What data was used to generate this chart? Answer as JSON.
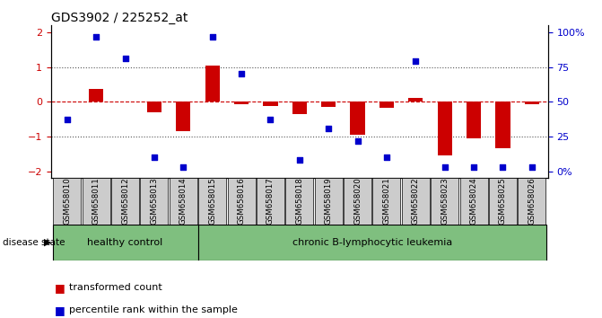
{
  "title": "GDS3902 / 225252_at",
  "samples": [
    "GSM658010",
    "GSM658011",
    "GSM658012",
    "GSM658013",
    "GSM658014",
    "GSM658015",
    "GSM658016",
    "GSM658017",
    "GSM658018",
    "GSM658019",
    "GSM658020",
    "GSM658021",
    "GSM658022",
    "GSM658023",
    "GSM658024",
    "GSM658025",
    "GSM658026"
  ],
  "bar_values": [
    0.0,
    0.38,
    0.0,
    -0.3,
    -0.85,
    1.05,
    -0.07,
    -0.13,
    -0.35,
    -0.14,
    -0.95,
    -0.18,
    0.12,
    -1.55,
    -1.05,
    -1.35,
    -0.07
  ],
  "blue_values": [
    37,
    97,
    81,
    10,
    3,
    97,
    70,
    37,
    8,
    31,
    22,
    10,
    79,
    3,
    3,
    3,
    3
  ],
  "healthy_control_count": 5,
  "bar_color": "#CC0000",
  "blue_color": "#0000CC",
  "zero_line_color": "#CC0000",
  "dotted_line_color": "#555555",
  "ylim_left": [
    -2.2,
    2.2
  ],
  "yticks_left": [
    -2,
    -1,
    0,
    1,
    2
  ],
  "yticks_right_pct": [
    0,
    25,
    50,
    75,
    100
  ],
  "healthy_color": "#7FBF7F",
  "leukemia_color": "#7FBF7F",
  "xticklabel_bg": "#CCCCCC",
  "legend_red_label": "transformed count",
  "legend_blue_label": "percentile rank within the sample",
  "disease_state_label": "disease state",
  "healthy_label": "healthy control",
  "leukemia_label": "chronic B-lymphocytic leukemia"
}
